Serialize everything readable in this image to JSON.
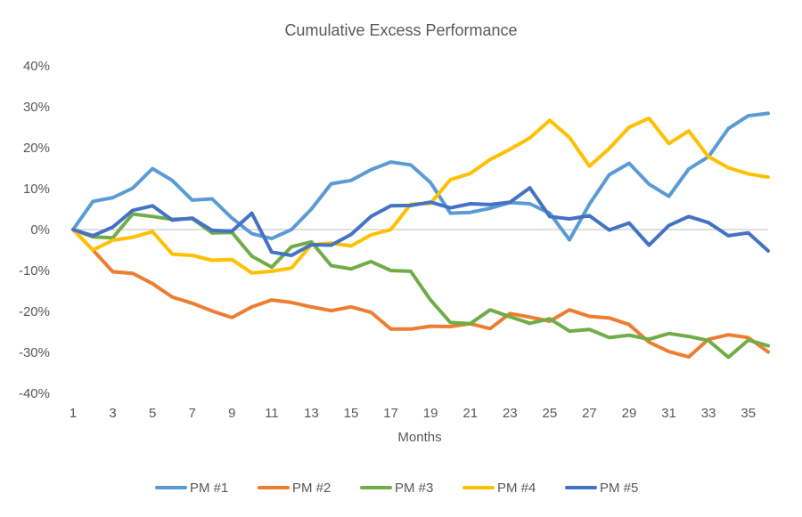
{
  "chart_data": {
    "type": "line",
    "title": "Cumulative Excess Performance",
    "xlabel": "Months",
    "ylabel": "",
    "ylim": [
      -0.4,
      0.4
    ],
    "yticks": [
      -0.4,
      -0.3,
      -0.2,
      -0.1,
      0,
      0.1,
      0.2,
      0.3,
      0.4
    ],
    "ytick_labels": [
      "-40%",
      "-30%",
      "-20%",
      "-10%",
      "0%",
      "10%",
      "20%",
      "30%",
      "40%"
    ],
    "xlim": [
      1,
      36
    ],
    "xticks": [
      1,
      3,
      5,
      7,
      9,
      11,
      13,
      15,
      17,
      19,
      21,
      23,
      25,
      27,
      29,
      31,
      33,
      35
    ],
    "xtick_labels": [
      "1",
      "3",
      "5",
      "7",
      "9",
      "11",
      "13",
      "15",
      "17",
      "19",
      "21",
      "23",
      "25",
      "27",
      "29",
      "31",
      "33",
      "35"
    ],
    "legend_position": "bottom",
    "series": [
      {
        "name": "PM #1",
        "color": "#5B9BD5",
        "values": [
          0.0,
          0.069,
          0.078,
          0.101,
          0.149,
          0.12,
          0.072,
          0.075,
          0.028,
          -0.01,
          -0.022,
          0.0,
          0.05,
          0.112,
          0.12,
          0.146,
          0.165,
          0.158,
          0.115,
          0.04,
          0.042,
          0.052,
          0.066,
          0.063,
          0.04,
          -0.025,
          0.062,
          0.134,
          0.162,
          0.111,
          0.081,
          0.148,
          0.178,
          0.247,
          0.278,
          0.284
        ]
      },
      {
        "name": "PM #2",
        "color": "#ED7D31",
        "values": [
          0.0,
          -0.05,
          -0.103,
          -0.107,
          -0.132,
          -0.165,
          -0.18,
          -0.199,
          -0.215,
          -0.189,
          -0.172,
          -0.178,
          -0.189,
          -0.198,
          -0.189,
          -0.202,
          -0.243,
          -0.243,
          -0.236,
          -0.237,
          -0.23,
          -0.242,
          -0.205,
          -0.214,
          -0.224,
          -0.196,
          -0.212,
          -0.216,
          -0.232,
          -0.275,
          -0.298,
          -0.311,
          -0.268,
          -0.257,
          -0.264,
          -0.299
        ]
      },
      {
        "name": "PM #3",
        "color": "#70AD47",
        "values": [
          0.0,
          -0.018,
          -0.02,
          0.038,
          0.032,
          0.025,
          0.027,
          -0.008,
          -0.007,
          -0.065,
          -0.092,
          -0.042,
          -0.03,
          -0.088,
          -0.096,
          -0.078,
          -0.1,
          -0.102,
          -0.172,
          -0.227,
          -0.23,
          -0.196,
          -0.213,
          -0.229,
          -0.218,
          -0.248,
          -0.244,
          -0.264,
          -0.258,
          -0.268,
          -0.254,
          -0.261,
          -0.271,
          -0.312,
          -0.27,
          -0.284
        ]
      },
      {
        "name": "PM #4",
        "color": "#FFC000",
        "values": [
          0.0,
          -0.05,
          -0.026,
          -0.019,
          -0.005,
          -0.06,
          -0.063,
          -0.075,
          -0.073,
          -0.106,
          -0.102,
          -0.094,
          -0.037,
          -0.033,
          -0.04,
          -0.013,
          0.0,
          0.062,
          0.064,
          0.122,
          0.137,
          0.171,
          0.196,
          0.224,
          0.267,
          0.225,
          0.155,
          0.198,
          0.25,
          0.272,
          0.21,
          0.241,
          0.178,
          0.151,
          0.136,
          0.128
        ]
      },
      {
        "name": "PM #5",
        "color": "#4472C4",
        "values": [
          0.0,
          -0.015,
          0.006,
          0.047,
          0.058,
          0.023,
          0.028,
          -0.002,
          -0.004,
          0.04,
          -0.055,
          -0.063,
          -0.037,
          -0.038,
          -0.012,
          0.032,
          0.058,
          0.059,
          0.067,
          0.053,
          0.063,
          0.061,
          0.067,
          0.102,
          0.032,
          0.026,
          0.034,
          -0.001,
          0.016,
          -0.038,
          0.01,
          0.032,
          0.017,
          -0.015,
          -0.008,
          -0.052
        ]
      }
    ]
  }
}
